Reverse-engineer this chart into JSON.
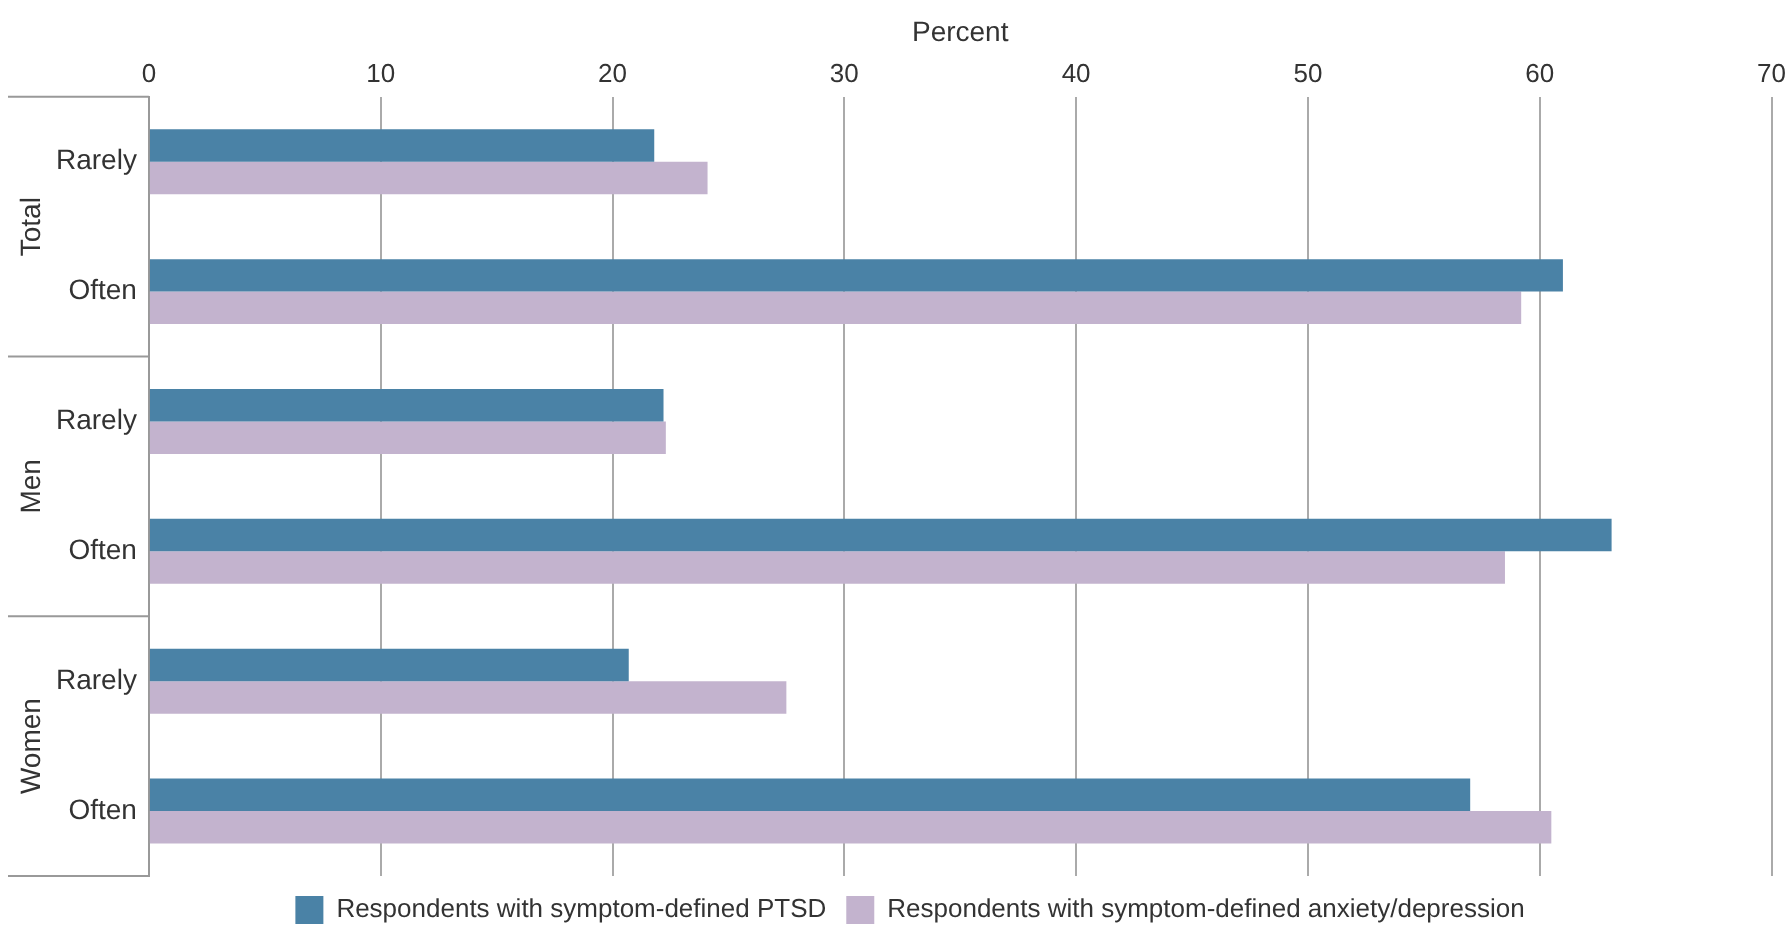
{
  "chart_data": {
    "type": "bar",
    "orientation": "horizontal",
    "xlabel": "Percent",
    "categories": [
      "Rarely",
      "Often",
      "Rarely",
      "Often",
      "Rarely",
      "Often"
    ],
    "series": [
      {
        "name": "Respondents with symptom-defined PTSD",
        "color": "#4a82a6",
        "values": [
          21.8,
          61.0,
          22.2,
          63.1,
          20.7,
          57.0
        ]
      },
      {
        "name": "Respondents with symptom-defined anxiety/depression",
        "color": "#c3b3ce",
        "values": [
          24.1,
          59.2,
          22.3,
          58.5,
          27.5,
          60.5
        ]
      }
    ],
    "annotations": [
      "Total",
      "Men",
      "Women"
    ],
    "xlim": [
      0,
      70
    ],
    "xticks": [
      0,
      10,
      20,
      30,
      40,
      50,
      60,
      70
    ],
    "grid": "x",
    "legend": "bottom"
  }
}
